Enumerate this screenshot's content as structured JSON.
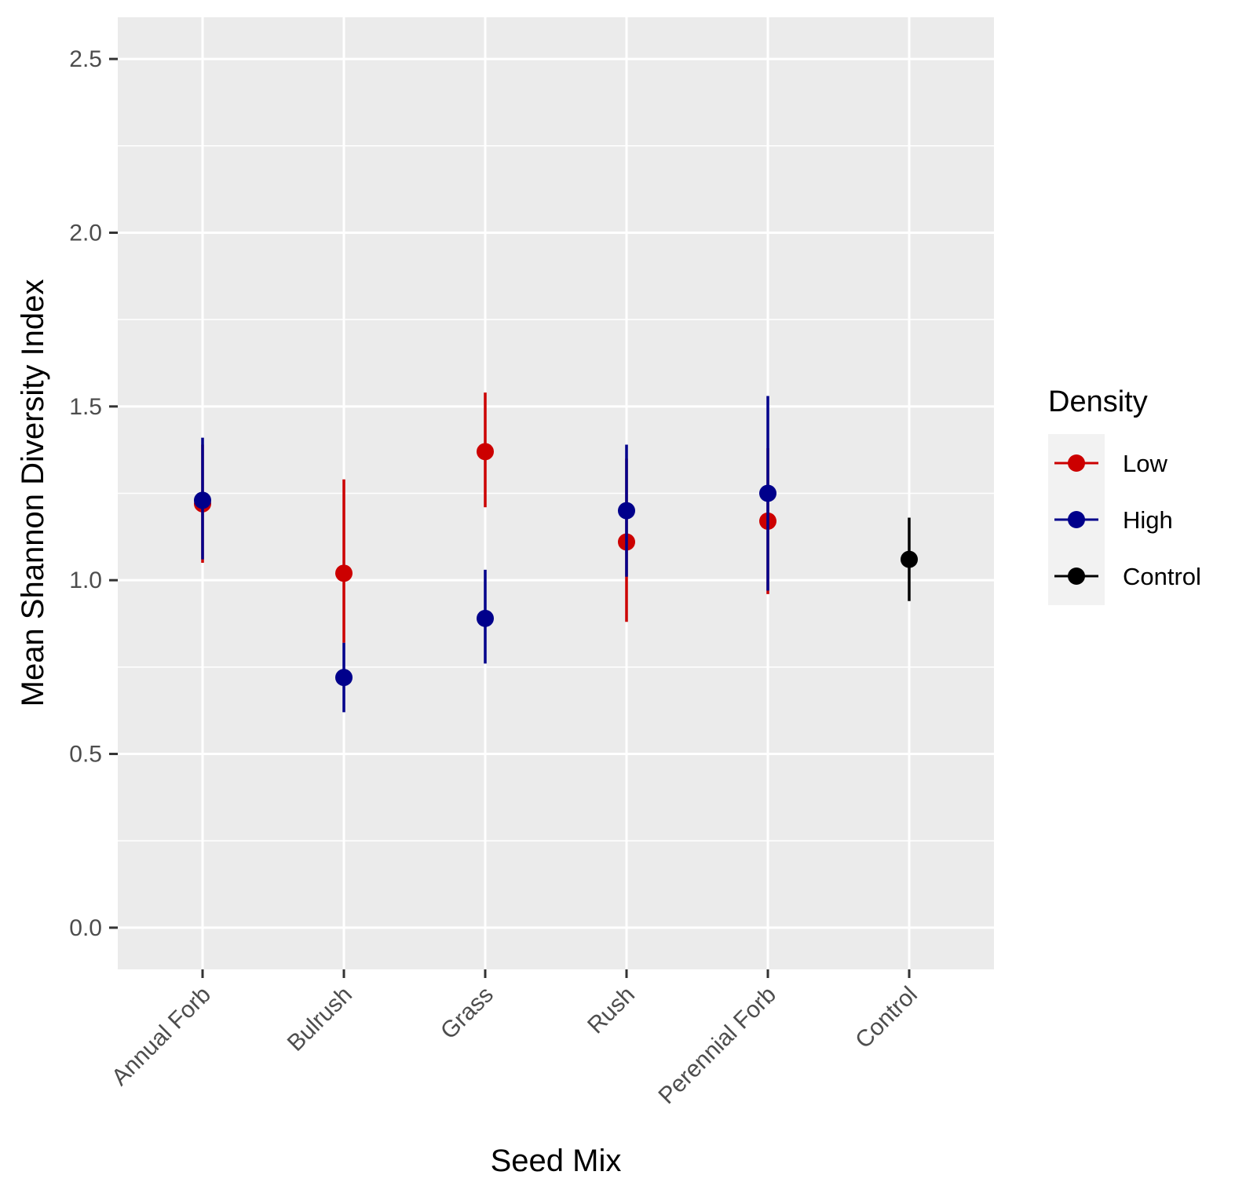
{
  "chart_data": {
    "type": "scatter",
    "subtype": "pointrange",
    "xlabel": "Seed Mix",
    "ylabel": "Mean Shannon Diversity Index",
    "categories": [
      "Annual Forb",
      "Bulrush",
      "Grass",
      "Rush",
      "Perennial Forb",
      "Control"
    ],
    "ylim": [
      -0.12,
      2.62
    ],
    "yticks": [
      0.0,
      0.5,
      1.0,
      1.5,
      2.0,
      2.5
    ],
    "ytick_labels": [
      "0.0",
      "0.5",
      "1.0",
      "1.5",
      "2.0",
      "2.5"
    ],
    "grid": true,
    "legend": {
      "title": "Density",
      "position": "right"
    },
    "series": [
      {
        "name": "Low",
        "color": "#cc0000",
        "points": [
          {
            "x": "Annual Forb",
            "y": 1.22,
            "ymin": 1.05,
            "ymax": 1.39
          },
          {
            "x": "Bulrush",
            "y": 1.02,
            "ymin": 0.82,
            "ymax": 1.29
          },
          {
            "x": "Grass",
            "y": 1.37,
            "ymin": 1.21,
            "ymax": 1.54
          },
          {
            "x": "Rush",
            "y": 1.11,
            "ymin": 0.88,
            "ymax": 1.35
          },
          {
            "x": "Perennial Forb",
            "y": 1.17,
            "ymin": 0.96,
            "ymax": 1.38
          }
        ]
      },
      {
        "name": "High",
        "color": "#00008b",
        "points": [
          {
            "x": "Annual Forb",
            "y": 1.23,
            "ymin": 1.06,
            "ymax": 1.41
          },
          {
            "x": "Bulrush",
            "y": 0.72,
            "ymin": 0.62,
            "ymax": 0.82
          },
          {
            "x": "Grass",
            "y": 0.89,
            "ymin": 0.76,
            "ymax": 1.03
          },
          {
            "x": "Rush",
            "y": 1.2,
            "ymin": 1.01,
            "ymax": 1.39
          },
          {
            "x": "Perennial Forb",
            "y": 1.25,
            "ymin": 0.97,
            "ymax": 1.53
          }
        ]
      },
      {
        "name": "Control",
        "color": "#000000",
        "points": [
          {
            "x": "Control",
            "y": 1.06,
            "ymin": 0.94,
            "ymax": 1.18
          }
        ]
      }
    ]
  }
}
